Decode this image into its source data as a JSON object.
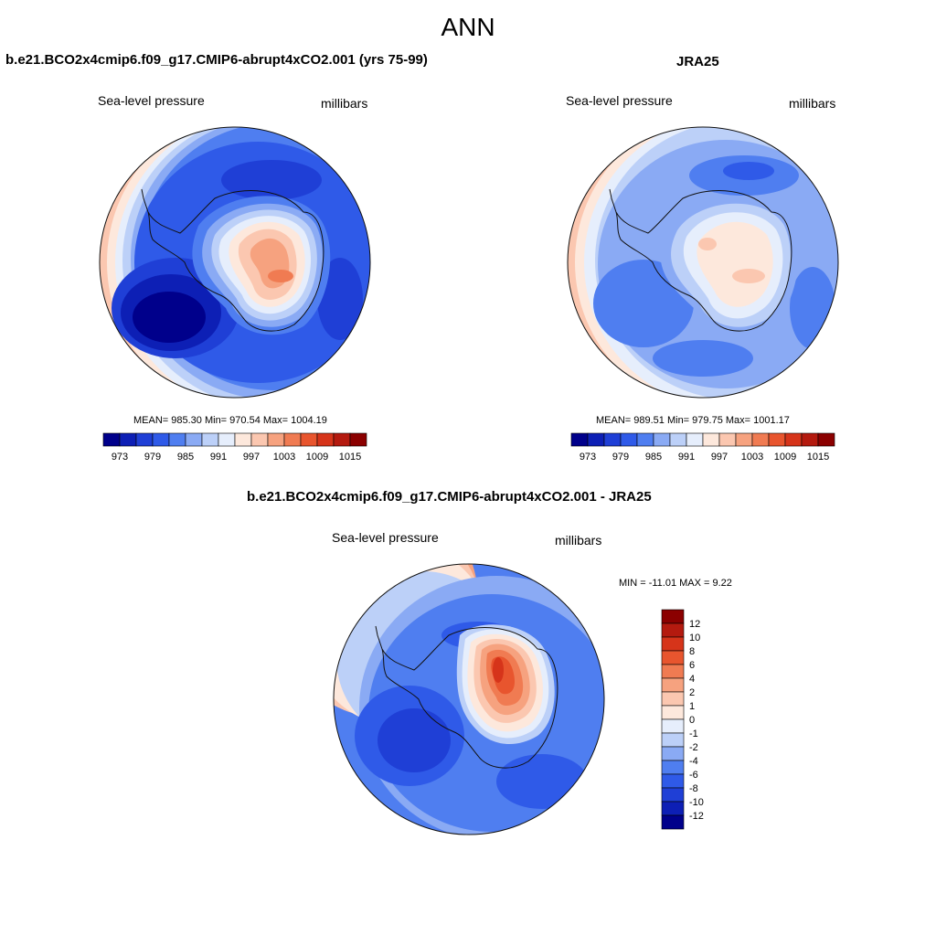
{
  "figure": {
    "title": "ANN"
  },
  "panels": {
    "model": {
      "title": "b.e21.BCO2x4cmip6.f09_g17.CMIP6-abrupt4xCO2.001 (yrs 75-99)",
      "left_label": "Sea-level pressure",
      "right_label": "millibars",
      "stats": "MEAN= 985.30  Min= 970.54  Max= 1004.19"
    },
    "obs": {
      "title": "JRA25",
      "left_label": "Sea-level pressure",
      "right_label": "millibars",
      "stats": "MEAN= 989.51  Min= 979.75  Max= 1001.17"
    },
    "diff": {
      "title": "b.e21.BCO2x4cmip6.f09_g17.CMIP6-abrupt4xCO2.001 - JRA25",
      "left_label": "Sea-level pressure",
      "right_label": "millibars",
      "stats": "MIN = -11.01 MAX =   9.22"
    }
  },
  "colorbars": {
    "abs": {
      "ticks": [
        "973",
        "979",
        "985",
        "991",
        "997",
        "1003",
        "1009",
        "1015"
      ],
      "colors": [
        "#00008b",
        "#0d1fb5",
        "#1f3fd6",
        "#2f5ae8",
        "#4f7ef0",
        "#8aaaf4",
        "#bcd0f8",
        "#e6eefc",
        "#fde8dc",
        "#fbc7b0",
        "#f6a27f",
        "#f07b52",
        "#e8552e",
        "#d6341a",
        "#b41a0f",
        "#8b0000"
      ]
    },
    "diff": {
      "ticks": [
        "12",
        "10",
        "8",
        "6",
        "4",
        "2",
        "1",
        "0",
        "-1",
        "-2",
        "-4",
        "-6",
        "-8",
        "-10",
        "-12"
      ],
      "colors": [
        "#8b0000",
        "#b41a0f",
        "#d6341a",
        "#e8552e",
        "#f07b52",
        "#f6a27f",
        "#fbc7b0",
        "#fde8dc",
        "#e6eefc",
        "#bcd0f8",
        "#8aaaf4",
        "#4f7ef0",
        "#2f5ae8",
        "#1f3fd6",
        "#0d1fb5",
        "#00008b"
      ]
    }
  }
}
